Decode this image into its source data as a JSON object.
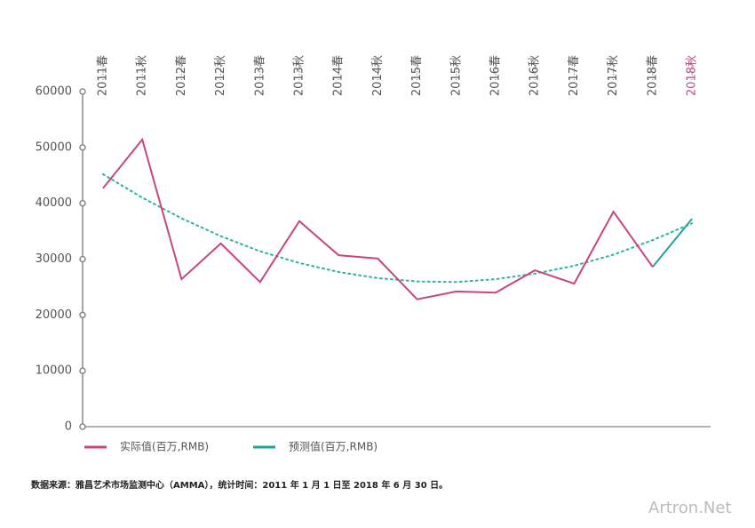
{
  "chart_data": {
    "type": "line",
    "categories": [
      "2011春",
      "2011秋",
      "2012春",
      "2012秋",
      "2013春",
      "2013秋",
      "2014春",
      "2014秋",
      "2015春",
      "2015秋",
      "2016春",
      "2016秋",
      "2017春",
      "2017秋",
      "2018春",
      "2018秋"
    ],
    "highlight": {
      "index": 15,
      "color": "#c8457f"
    },
    "series": [
      {
        "name": "实际值(百万,RMB)",
        "color": "#c8457f",
        "values": [
          42700,
          51400,
          26400,
          32800,
          25900,
          36800,
          30700,
          30100,
          22800,
          24200,
          24000,
          28000,
          25600,
          38500,
          28600,
          null
        ]
      },
      {
        "name": "预测值(百万,RMB)",
        "color": "#1fa394",
        "values": [
          null,
          null,
          null,
          null,
          null,
          null,
          null,
          null,
          null,
          null,
          null,
          null,
          null,
          null,
          28600,
          37200
        ]
      }
    ],
    "trendline": {
      "color": "#2bb3a0",
      "values": [
        45200,
        41000,
        37300,
        34100,
        31400,
        29300,
        27700,
        26600,
        26000,
        25900,
        26400,
        27400,
        28800,
        30800,
        33400,
        36400
      ]
    },
    "ylim": [
      0,
      60000
    ],
    "yticks": [
      0,
      10000,
      20000,
      30000,
      40000,
      50000,
      60000
    ],
    "source": "数据来源：雅昌艺术市场监测中心（AMMA），统计时间：2011 年 1 月 1 日至 2018 年 6 月 30 日。",
    "watermark": "Artron.Net"
  }
}
